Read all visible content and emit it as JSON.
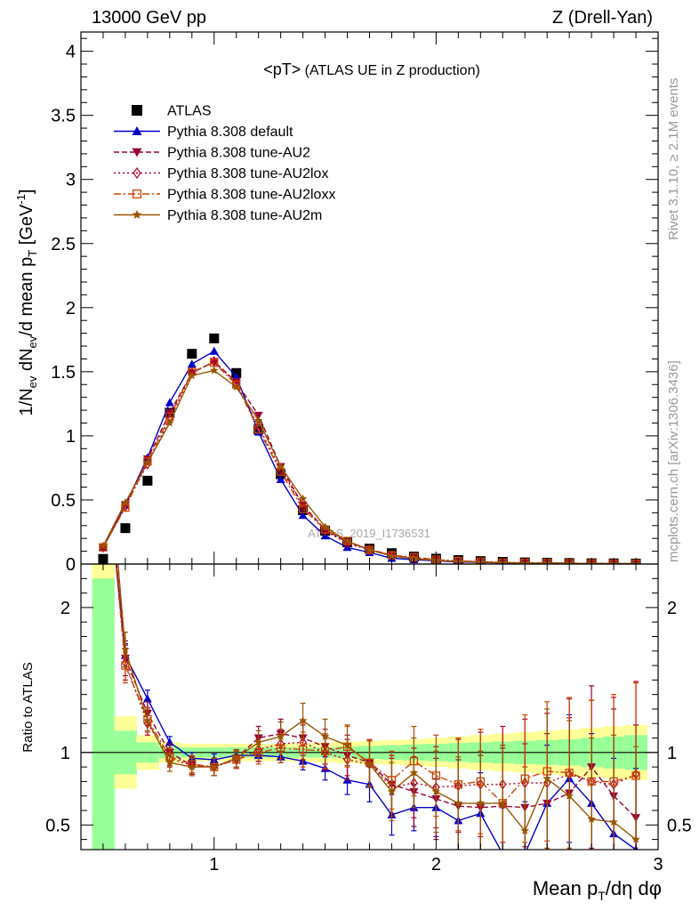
{
  "header": {
    "left": "13000 GeV pp",
    "right": "Z (Drell-Yan)"
  },
  "side": {
    "rivet": "Rivet 3.1.10, ≥ 2.1M events",
    "mcplots": "mcplots.cern.ch [arXiv:1306.3436]"
  },
  "watermark": "ATLAS_2019_I1736531",
  "chart_data": [
    {
      "type": "scatter",
      "panel": "main",
      "title_main": "<pT>",
      "title_sub": " (ATLAS UE in Z production)",
      "ylabel": "1/N_ev dN_ev/d mean p_T [GeV^-1]",
      "xlim": [
        0.4,
        3.0
      ],
      "ylim": [
        0,
        4.15
      ],
      "y_ticks": [
        0,
        0.5,
        1,
        1.5,
        2,
        2.5,
        3,
        3.5,
        4
      ],
      "y_tick_labels": [
        "0",
        "0.5",
        "1",
        "1.5",
        "2",
        "2.5",
        "3",
        "3.5",
        "4"
      ],
      "x": [
        0.5,
        0.6,
        0.7,
        0.8,
        0.9,
        1.0,
        1.1,
        1.2,
        1.3,
        1.4,
        1.5,
        1.6,
        1.7,
        1.8,
        1.9,
        2.0,
        2.1,
        2.2,
        2.3,
        2.4,
        2.5,
        2.6,
        2.7,
        2.8,
        2.9
      ],
      "legend_position": "top-left",
      "series": [
        {
          "name": "ATLAS",
          "color": "#000000",
          "marker": "square",
          "style": "none",
          "values": [
            0.04,
            0.28,
            0.65,
            1.18,
            1.64,
            1.76,
            1.49,
            1.05,
            0.7,
            0.42,
            0.26,
            0.17,
            0.12,
            0.085,
            0.058,
            0.042,
            0.031,
            0.023,
            0.017,
            0.013,
            0.01,
            0.008,
            0.006,
            0.005,
            0.004
          ]
        },
        {
          "name": "Pythia 8.308 default",
          "color": "#0000cc",
          "marker": "triangle-up",
          "style": "solid",
          "values": [
            0.13,
            0.46,
            0.83,
            1.26,
            1.56,
            1.66,
            1.46,
            1.03,
            0.66,
            0.38,
            0.22,
            0.13,
            0.09,
            0.045,
            0.035,
            0.025,
            0.016,
            0.013,
            0.008,
            0.005,
            0.0065,
            0.0065,
            0.0039,
            0.0022,
            0.0013
          ]
        },
        {
          "name": "Pythia 8.308 tune-AU2",
          "color": "#990033",
          "marker": "triangle-down",
          "style": "dashed",
          "values": [
            0.13,
            0.46,
            0.82,
            1.18,
            1.49,
            1.58,
            1.42,
            1.16,
            0.76,
            0.46,
            0.27,
            0.17,
            0.115,
            0.068,
            0.044,
            0.029,
            0.02,
            0.015,
            0.011,
            0.0083,
            0.0068,
            0.0058,
            0.0054,
            0.0036,
            0.0022
          ]
        },
        {
          "name": "Pythia 8.308 tune-AU2lox",
          "color": "#b40023",
          "marker": "diamond-open",
          "style": "dotted",
          "values": [
            0.13,
            0.45,
            0.78,
            1.13,
            1.49,
            1.58,
            1.41,
            1.07,
            0.74,
            0.45,
            0.26,
            0.16,
            0.11,
            0.065,
            0.046,
            0.032,
            0.024,
            0.018,
            0.013,
            0.01,
            0.0079,
            0.0068,
            0.0048,
            0.0039,
            0.0034
          ]
        },
        {
          "name": "Pythia 8.308 tune-AU2loxx",
          "color": "#cc4400",
          "marker": "square-open",
          "style": "dashdot",
          "values": [
            0.13,
            0.44,
            0.8,
            1.15,
            1.5,
            1.57,
            1.4,
            1.05,
            0.72,
            0.43,
            0.27,
            0.18,
            0.11,
            0.069,
            0.054,
            0.035,
            0.024,
            0.018,
            0.011,
            0.0106,
            0.0087,
            0.0069,
            0.0048,
            0.004,
            0.0034
          ]
        },
        {
          "name": "Pythia 8.308 tune-AU2m",
          "color": "#995500",
          "marker": "star",
          "style": "solid",
          "values": [
            0.14,
            0.48,
            0.79,
            1.1,
            1.47,
            1.51,
            1.38,
            1.12,
            0.76,
            0.51,
            0.29,
            0.18,
            0.11,
            0.062,
            0.042,
            0.028,
            0.02,
            0.015,
            0.011,
            0.006,
            0.008,
            0.006,
            0.004,
            0.003,
            0.002
          ]
        }
      ]
    },
    {
      "type": "line",
      "panel": "ratio",
      "ylabel": "Ratio to ATLAS",
      "xlabel": "Mean p_T/dη dφ",
      "xlim": [
        0.4,
        3.0
      ],
      "ylim": [
        0.33,
        2.3
      ],
      "x_ticks": [
        1,
        2,
        3
      ],
      "x_tick_labels": [
        "1",
        "2",
        "3"
      ],
      "y_ticks": [
        0.5,
        1,
        2
      ],
      "y_tick_labels": [
        "0.5",
        "1",
        "2"
      ],
      "reference_line": 1.0,
      "x": [
        0.5,
        0.6,
        0.7,
        0.8,
        0.9,
        1.0,
        1.1,
        1.2,
        1.3,
        1.4,
        1.5,
        1.6,
        1.7,
        1.8,
        1.9,
        2.0,
        2.1,
        2.2,
        2.3,
        2.4,
        2.5,
        2.6,
        2.7,
        2.8,
        2.9
      ],
      "band_green_halfwidth": [
        1.2,
        0.15,
        0.07,
        0.04,
        0.035,
        0.035,
        0.035,
        0.035,
        0.035,
        0.035,
        0.035,
        0.04,
        0.045,
        0.05,
        0.055,
        0.06,
        0.065,
        0.07,
        0.075,
        0.08,
        0.085,
        0.09,
        0.1,
        0.11,
        0.12
      ],
      "band_yellow_halfwidth": [
        2.0,
        0.25,
        0.12,
        0.07,
        0.06,
        0.06,
        0.06,
        0.06,
        0.06,
        0.065,
        0.07,
        0.075,
        0.08,
        0.085,
        0.09,
        0.1,
        0.11,
        0.12,
        0.13,
        0.14,
        0.15,
        0.16,
        0.17,
        0.18,
        0.19
      ],
      "series": [
        {
          "name": "Pythia 8.308 default",
          "color": "#0000cc",
          "marker": "triangle-up",
          "style": "solid",
          "values": [
            3.2,
            1.67,
            1.37,
            1.07,
            0.96,
            0.95,
            0.98,
            0.98,
            0.97,
            0.94,
            0.89,
            0.81,
            0.78,
            0.57,
            0.62,
            0.62,
            0.53,
            0.58,
            0.3,
            0.3,
            0.65,
            0.82,
            0.65,
            0.44,
            0.33
          ],
          "errors": [
            0.05,
            0.02,
            0.015,
            0.01,
            0.01,
            0.01,
            0.01,
            0.01,
            0.01,
            0.015,
            0.02,
            0.025,
            0.03,
            0.035,
            0.04,
            0.05,
            0.06,
            0.07,
            0.08,
            0.09,
            0.1,
            0.11,
            0.12,
            0.13,
            0.14
          ]
        },
        {
          "name": "Pythia 8.308 tune-AU2",
          "color": "#990033",
          "marker": "triangle-down",
          "style": "dashed",
          "values": [
            3.3,
            1.65,
            1.27,
            1.0,
            0.91,
            0.9,
            0.96,
            1.1,
            1.13,
            1.1,
            1.04,
            0.98,
            0.93,
            0.78,
            0.73,
            0.68,
            0.63,
            0.62,
            0.63,
            0.62,
            0.65,
            0.72,
            0.9,
            0.7,
            0.55
          ],
          "errors": [
            0.05,
            0.03,
            0.02,
            0.015,
            0.015,
            0.015,
            0.015,
            0.02,
            0.025,
            0.03,
            0.03,
            0.035,
            0.04,
            0.05,
            0.06,
            0.07,
            0.08,
            0.09,
            0.1,
            0.11,
            0.12,
            0.13,
            0.14,
            0.15,
            0.16
          ]
        },
        {
          "name": "Pythia 8.308 tune-AU2lox",
          "color": "#b40023",
          "marker": "diamond-open",
          "style": "dotted",
          "values": [
            3.25,
            1.62,
            1.2,
            0.96,
            0.91,
            0.9,
            0.95,
            1.02,
            1.06,
            1.07,
            1.0,
            0.95,
            0.92,
            0.76,
            0.79,
            0.76,
            0.77,
            0.78,
            0.78,
            0.79,
            0.79,
            0.85,
            0.8,
            0.78,
            0.85
          ],
          "errors": [
            0.05,
            0.03,
            0.02,
            0.015,
            0.015,
            0.015,
            0.015,
            0.02,
            0.025,
            0.03,
            0.03,
            0.035,
            0.04,
            0.05,
            0.06,
            0.07,
            0.08,
            0.09,
            0.1,
            0.11,
            0.12,
            0.13,
            0.14,
            0.15,
            0.16
          ]
        },
        {
          "name": "Pythia 8.308 tune-AU2loxx",
          "color": "#cc4400",
          "marker": "square-open",
          "style": "dashdot",
          "values": [
            3.25,
            1.6,
            1.23,
            0.97,
            0.92,
            0.9,
            0.95,
            1.0,
            1.03,
            1.02,
            1.01,
            1.04,
            0.93,
            0.81,
            0.94,
            0.84,
            0.78,
            0.8,
            0.65,
            0.82,
            0.87,
            0.86,
            0.8,
            0.8,
            0.84
          ],
          "errors": [
            0.05,
            0.03,
            0.02,
            0.015,
            0.015,
            0.015,
            0.015,
            0.02,
            0.025,
            0.03,
            0.03,
            0.035,
            0.04,
            0.05,
            0.06,
            0.07,
            0.08,
            0.09,
            0.1,
            0.11,
            0.12,
            0.13,
            0.14,
            0.15,
            0.16
          ]
        },
        {
          "name": "Pythia 8.308 tune-AU2m",
          "color": "#995500",
          "marker": "star",
          "style": "solid",
          "values": [
            3.5,
            1.71,
            1.22,
            0.93,
            0.9,
            0.9,
            0.96,
            1.07,
            1.11,
            1.22,
            1.11,
            1.05,
            0.92,
            0.73,
            0.86,
            0.73,
            0.65,
            0.65,
            0.65,
            0.46,
            0.82,
            0.7,
            0.54,
            0.52,
            0.4
          ],
          "errors": [
            0.05,
            0.03,
            0.02,
            0.015,
            0.015,
            0.015,
            0.015,
            0.02,
            0.025,
            0.03,
            0.03,
            0.035,
            0.04,
            0.05,
            0.06,
            0.07,
            0.08,
            0.09,
            0.1,
            0.11,
            0.12,
            0.13,
            0.14,
            0.15,
            0.16
          ]
        }
      ]
    }
  ]
}
